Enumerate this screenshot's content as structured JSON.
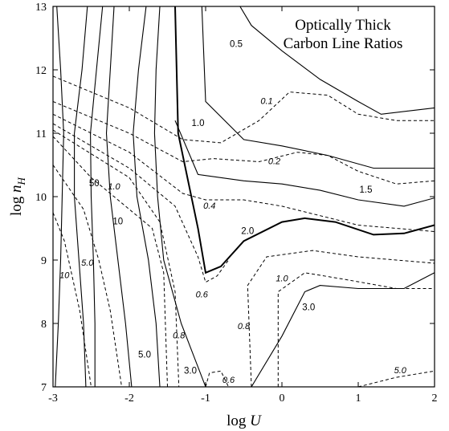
{
  "chart_data": {
    "type": "contour",
    "title": [
      "Optically Thick",
      "Carbon Line Ratios"
    ],
    "xlabel": "log U",
    "ylabel": "log n_H",
    "xlim": [
      -3,
      2
    ],
    "ylim": [
      7,
      13
    ],
    "xticks": [
      "-3",
      "-2",
      "-1",
      "0",
      "1",
      "2"
    ],
    "yticks": [
      "7",
      "8",
      "9",
      "10",
      "11",
      "12",
      "13"
    ],
    "series": [
      {
        "style": "solid",
        "points": [
          [
            -2.97,
            7.0
          ],
          [
            -2.93,
            8.0
          ],
          [
            -2.9,
            9.0
          ],
          [
            -2.88,
            10.0
          ],
          [
            -2.86,
            11.0
          ],
          [
            -2.9,
            12.0
          ],
          [
            -2.95,
            13.0
          ]
        ]
      },
      {
        "style": "solid",
        "points": [
          [
            -2.57,
            7.0
          ],
          [
            -2.6,
            8.0
          ],
          [
            -2.66,
            9.0
          ],
          [
            -2.72,
            10.0
          ],
          [
            -2.72,
            11.0
          ],
          [
            -2.62,
            12.0
          ],
          [
            -2.55,
            13.0
          ]
        ]
      },
      {
        "style": "solid",
        "label": "50",
        "label_at": [
          -2.46,
          10.2
        ],
        "points": [
          [
            -2.45,
            7.0
          ],
          [
            -2.45,
            8.0
          ],
          [
            -2.47,
            9.0
          ],
          [
            -2.5,
            10.0
          ],
          [
            -2.51,
            11.0
          ],
          [
            -2.43,
            12.0
          ],
          [
            -2.35,
            13.0
          ]
        ]
      },
      {
        "style": "solid",
        "label": "10",
        "label_at": [
          -2.15,
          9.6
        ],
        "points": [
          [
            -1.97,
            7.0
          ],
          [
            -2.05,
            8.0
          ],
          [
            -2.15,
            9.0
          ],
          [
            -2.25,
            10.0
          ],
          [
            -2.3,
            11.0
          ],
          [
            -2.25,
            12.0
          ],
          [
            -2.2,
            13.0
          ]
        ]
      },
      {
        "style": "solid",
        "label": "5.0",
        "label_at": [
          -1.8,
          7.5
        ],
        "points": [
          [
            -1.6,
            7.0
          ],
          [
            -1.65,
            8.0
          ],
          [
            -1.75,
            9.0
          ],
          [
            -1.9,
            10.0
          ],
          [
            -1.95,
            11.0
          ],
          [
            -1.88,
            12.0
          ],
          [
            -1.78,
            13.0
          ]
        ]
      },
      {
        "style": "solid",
        "label": "3.0",
        "label_at": [
          -1.2,
          7.25
        ],
        "points": [
          [
            -1.0,
            7.0
          ],
          [
            -1.32,
            8.0
          ],
          [
            -1.55,
            9.0
          ],
          [
            -1.63,
            10.0
          ],
          [
            -1.67,
            11.0
          ],
          [
            -1.65,
            12.0
          ],
          [
            -1.6,
            13.0
          ]
        ]
      },
      {
        "style": "solid",
        "label": "2.0",
        "label_at": [
          -0.45,
          9.45
        ],
        "points": [
          [
            -1.4,
            13.0
          ],
          [
            -1.38,
            12.0
          ],
          [
            -1.36,
            11.0
          ],
          [
            -1.1,
            9.5
          ],
          [
            -1.0,
            8.8
          ],
          [
            -0.8,
            8.9
          ],
          [
            -0.5,
            9.3
          ],
          [
            0.0,
            9.6
          ],
          [
            0.3,
            9.66
          ],
          [
            0.7,
            9.6
          ],
          [
            1.2,
            9.4
          ],
          [
            1.6,
            9.42
          ],
          [
            2.0,
            9.55
          ]
        ]
      },
      {
        "style": "solid",
        "label": "1.5",
        "label_at": [
          1.1,
          10.1
        ],
        "points": [
          [
            -1.4,
            11.2
          ],
          [
            -1.1,
            10.35
          ],
          [
            -0.5,
            10.25
          ],
          [
            0.0,
            10.2
          ],
          [
            0.5,
            10.1
          ],
          [
            1.0,
            9.95
          ],
          [
            1.6,
            9.85
          ],
          [
            2.0,
            9.98
          ]
        ]
      },
      {
        "style": "solid",
        "label": "1.0",
        "label_at": [
          -1.1,
          11.15
        ],
        "points": [
          [
            -1.05,
            13.0
          ],
          [
            -1.0,
            11.5
          ],
          [
            -0.5,
            10.9
          ],
          [
            0.0,
            10.8
          ],
          [
            0.6,
            10.65
          ],
          [
            1.2,
            10.45
          ],
          [
            2.0,
            10.45
          ]
        ]
      },
      {
        "style": "solid",
        "label": "0.5",
        "label_at": [
          -0.6,
          12.4
        ],
        "points": [
          [
            -0.55,
            13.0
          ],
          [
            -0.4,
            12.7
          ],
          [
            0.0,
            12.3
          ],
          [
            0.5,
            11.85
          ],
          [
            1.0,
            11.5
          ],
          [
            1.3,
            11.3
          ],
          [
            2.0,
            11.4
          ]
        ]
      },
      {
        "style": "solid",
        "label": "3.0",
        "label_at": [
          0.35,
          8.25
        ],
        "points": [
          [
            -0.4,
            7.0
          ],
          [
            0.0,
            7.8
          ],
          [
            0.3,
            8.5
          ],
          [
            0.5,
            8.6
          ],
          [
            1.0,
            8.55
          ],
          [
            1.6,
            8.55
          ],
          [
            2.0,
            8.8
          ]
        ]
      },
      {
        "style": "dashed",
        "label": "10",
        "label_at": [
          -2.85,
          8.75
        ],
        "points": [
          [
            -3.0,
            9.75
          ],
          [
            -2.85,
            9.3
          ],
          [
            -2.65,
            8.2
          ],
          [
            -2.5,
            7.0
          ]
        ]
      },
      {
        "style": "dashed",
        "label": "5.0",
        "label_at": [
          -2.55,
          8.95
        ],
        "points": [
          [
            -3.0,
            10.5
          ],
          [
            -2.6,
            9.8
          ],
          [
            -2.4,
            9.0
          ],
          [
            -2.25,
            8.2
          ],
          [
            -2.1,
            7.0
          ]
        ]
      },
      {
        "style": "dashed",
        "label": "1.0",
        "label_at": [
          -2.2,
          10.15
        ],
        "points": [
          [
            -3.0,
            10.95
          ],
          [
            -2.5,
            10.3
          ],
          [
            -2.0,
            9.8
          ],
          [
            -1.7,
            9.5
          ],
          [
            -1.55,
            8.8
          ],
          [
            -1.5,
            7.0
          ]
        ]
      },
      {
        "style": "dashed",
        "label": "0.8",
        "label_at": [
          -1.35,
          7.8
        ],
        "points": [
          [
            -3.0,
            11.05
          ],
          [
            -2.0,
            10.3
          ],
          [
            -1.6,
            9.6
          ],
          [
            -1.4,
            8.5
          ],
          [
            -1.35,
            7.0
          ]
        ]
      },
      {
        "style": "dashed",
        "label": "0.6",
        "label_at": [
          -1.05,
          8.45
        ],
        "points": [
          [
            -3.0,
            11.15
          ],
          [
            -2.0,
            10.45
          ],
          [
            -1.4,
            9.85
          ],
          [
            -1.1,
            9.05
          ],
          [
            -1.0,
            8.65
          ],
          [
            -0.85,
            8.75
          ],
          [
            -0.7,
            9.0
          ]
        ]
      },
      {
        "style": "dashed",
        "label": "0.4",
        "label_at": [
          -0.95,
          9.85
        ],
        "points": [
          [
            -3.0,
            11.3
          ],
          [
            -2.0,
            10.7
          ],
          [
            -1.3,
            10.05
          ],
          [
            -1.0,
            9.95
          ],
          [
            -0.5,
            9.95
          ],
          [
            0.0,
            9.85
          ],
          [
            0.5,
            9.7
          ],
          [
            1.0,
            9.55
          ],
          [
            2.0,
            9.45
          ]
        ]
      },
      {
        "style": "dashed",
        "label": "0.2",
        "label_at": [
          -0.1,
          10.55
        ],
        "points": [
          [
            -3.0,
            11.5
          ],
          [
            -2.0,
            11.0
          ],
          [
            -1.3,
            10.55
          ],
          [
            -0.9,
            10.6
          ],
          [
            -0.3,
            10.55
          ],
          [
            0.2,
            10.7
          ],
          [
            0.6,
            10.65
          ],
          [
            1.0,
            10.4
          ],
          [
            1.5,
            10.2
          ],
          [
            2.0,
            10.25
          ]
        ]
      },
      {
        "style": "dashed",
        "label": "0.1",
        "label_at": [
          -0.2,
          11.5
        ],
        "points": [
          [
            -3.0,
            11.9
          ],
          [
            -2.0,
            11.4
          ],
          [
            -1.3,
            10.9
          ],
          [
            -0.8,
            10.85
          ],
          [
            -0.3,
            11.2
          ],
          [
            0.1,
            11.65
          ],
          [
            0.6,
            11.6
          ],
          [
            1.0,
            11.3
          ],
          [
            1.5,
            11.2
          ],
          [
            2.0,
            11.2
          ]
        ]
      },
      {
        "style": "dashed",
        "label": "1.0",
        "label_at": [
          0.0,
          8.7
        ],
        "points": [
          [
            -0.05,
            7.0
          ],
          [
            -0.05,
            8.5
          ],
          [
            0.3,
            8.8
          ],
          [
            0.8,
            8.7
          ],
          [
            1.5,
            8.55
          ],
          [
            2.0,
            8.55
          ]
        ]
      },
      {
        "style": "dashed",
        "label": "0.8",
        "label_at": [
          -0.5,
          7.95
        ],
        "points": [
          [
            -0.4,
            7.0
          ],
          [
            -0.45,
            8.6
          ],
          [
            -0.2,
            9.05
          ],
          [
            0.4,
            9.15
          ],
          [
            1.0,
            9.05
          ],
          [
            2.0,
            8.95
          ]
        ]
      },
      {
        "style": "dashed",
        "label": "0.6",
        "label_at": [
          -0.7,
          7.1
        ],
        "points": [
          [
            -1.0,
            7.0
          ],
          [
            -0.95,
            7.22
          ],
          [
            -0.8,
            7.25
          ],
          [
            -0.7,
            7.0
          ]
        ]
      },
      {
        "style": "dashed",
        "label": "5.0",
        "label_at": [
          1.55,
          7.25
        ],
        "points": [
          [
            1.0,
            7.0
          ],
          [
            1.5,
            7.15
          ],
          [
            2.0,
            7.25
          ]
        ]
      }
    ]
  }
}
